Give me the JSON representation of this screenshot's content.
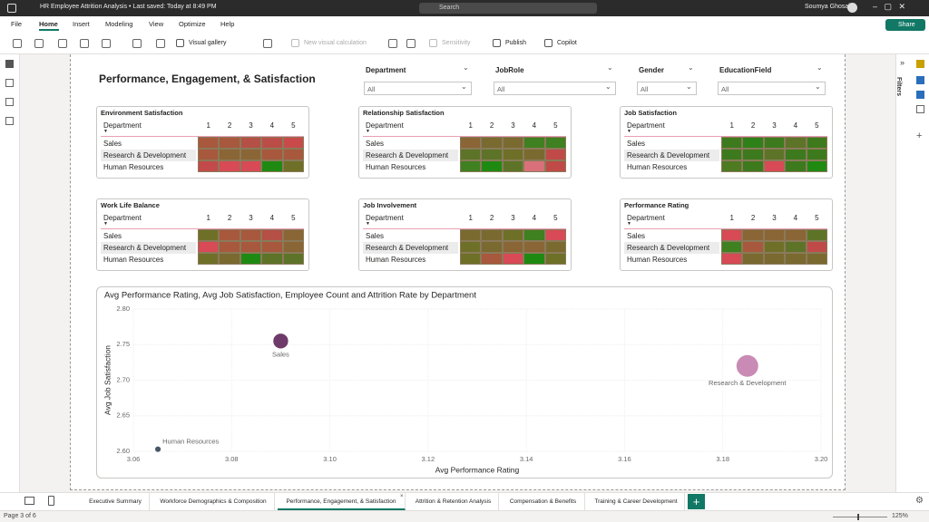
{
  "window": {
    "title": "HR Employee Attrition Analysis • Last saved: Today at 8:49 PM",
    "search": "Search",
    "user": "Soumya Ghosal",
    "share": "Share"
  },
  "menu": [
    "File",
    "Home",
    "Insert",
    "Modeling",
    "View",
    "Optimize",
    "Help"
  ],
  "ribbon": [
    "Visual gallery",
    "New visual calculation",
    "Sensitivity",
    "Publish",
    "Copilot"
  ],
  "filters_pane": "Filters",
  "report": {
    "title": "Performance, Engagement, & Satisfaction",
    "slicers": [
      {
        "label": "Department",
        "value": "All"
      },
      {
        "label": "JobRole",
        "value": "All"
      },
      {
        "label": "Gender",
        "value": "All"
      },
      {
        "label": "EducationField",
        "value": "All"
      }
    ],
    "matrices": [
      {
        "title": "Environment Satisfaction",
        "row_header": "Department",
        "columns": [
          "1",
          "2",
          "3",
          "4",
          "5"
        ],
        "rows": [
          "Sales",
          "Research & Development",
          "Human Resources"
        ],
        "colors": [
          [
            "#a8583c",
            "#a8583c",
            "#b45045",
            "#bb4d48",
            "#c94a4a"
          ],
          [
            "#a8583c",
            "#8a6535",
            "#8a6535",
            "#a8583c",
            "#a8583c"
          ],
          [
            "#c24a4a",
            "#d84a55",
            "#d84a55",
            "#1f8a12",
            "#6e7028"
          ]
        ]
      },
      {
        "title": "Relationship Satisfaction",
        "row_header": "Department",
        "columns": [
          "1",
          "2",
          "3",
          "4",
          "5"
        ],
        "rows": [
          "Sales",
          "Research & Development",
          "Human Resources"
        ],
        "colors": [
          [
            "#8a6535",
            "#7a6a30",
            "#7a6a30",
            "#3f8020",
            "#3f8020"
          ],
          [
            "#5d7428",
            "#5d7428",
            "#6e7028",
            "#7a6a30",
            "#c04a48"
          ],
          [
            "#3f8020",
            "#1f8a12",
            "#5d7428",
            "#d9707a",
            "#c04a48"
          ]
        ]
      },
      {
        "title": "Job Satisfaction",
        "row_header": "Department",
        "columns": [
          "1",
          "2",
          "3",
          "4",
          "5"
        ],
        "rows": [
          "Sales",
          "Research & Development",
          "Human Resources"
        ],
        "colors": [
          [
            "#3d7a1d",
            "#2e8018",
            "#3d7a1d",
            "#5d7428",
            "#3d7a1d"
          ],
          [
            "#3d7a1d",
            "#3d7a1d",
            "#5d7428",
            "#3d7a1d",
            "#3d7a1d"
          ],
          [
            "#4e7a22",
            "#3d7a1d",
            "#d84a55",
            "#3d7a1d",
            "#1f8a12"
          ]
        ]
      },
      {
        "title": "Work Life Balance",
        "row_header": "Department",
        "columns": [
          "1",
          "2",
          "3",
          "4",
          "5"
        ],
        "rows": [
          "Sales",
          "Research & Development",
          "Human Resources"
        ],
        "colors": [
          [
            "#6e7028",
            "#a8583c",
            "#a8583c",
            "#b45045",
            "#8a6535"
          ],
          [
            "#d84a55",
            "#a8583c",
            "#a8583c",
            "#a8583c",
            "#8a6535"
          ],
          [
            "#6e7028",
            "#7a6a30",
            "#1f8a12",
            "#5d7428",
            "#5d7428"
          ]
        ]
      },
      {
        "title": "Job Involvement",
        "row_header": "Department",
        "columns": [
          "1",
          "2",
          "3",
          "4",
          "5"
        ],
        "rows": [
          "Sales",
          "Research & Development",
          "Human Resources"
        ],
        "colors": [
          [
            "#7a6a30",
            "#7a6a30",
            "#6e7028",
            "#3f8020",
            "#d84a55"
          ],
          [
            "#6e7028",
            "#7a6a30",
            "#8a6535",
            "#8a6535",
            "#7a6a30"
          ],
          [
            "#6e7028",
            "#a8583c",
            "#d84a55",
            "#1f8a12",
            "#6e7028"
          ]
        ]
      },
      {
        "title": "Performance Rating",
        "row_header": "Department",
        "columns": [
          "1",
          "2",
          "3",
          "4",
          "5"
        ],
        "rows": [
          "Sales",
          "Research & Development",
          "Human Resources"
        ],
        "colors": [
          [
            "#d84a55",
            "#8a6535",
            "#8a6535",
            "#8a6535",
            "#5d7428"
          ],
          [
            "#3f8020",
            "#a8583c",
            "#6e7028",
            "#5d7428",
            "#c04a48"
          ],
          [
            "#d84a55",
            "#7a6a30",
            "#7a6a30",
            "#7a6a30",
            "#7a6a30"
          ]
        ]
      }
    ]
  },
  "chart_data": {
    "type": "scatter",
    "title": "Avg Performance Rating, Avg Job Satisfaction, Employee Count and Attrition Rate by Department",
    "x_label": "Avg Performance Rating",
    "y_label": "Avg Job Satisfaction",
    "categories": [
      "Sales",
      "Research & Development",
      "Human Resources"
    ],
    "x": [
      3.09,
      3.185,
      3.065
    ],
    "values": [
      2.755,
      2.72,
      2.603
    ],
    "sizes": [
      446,
      961,
      63
    ],
    "colors": [
      "#6e3a6a",
      "#c98bb5",
      "#4a5668"
    ],
    "xlim": [
      3.06,
      3.2
    ],
    "ylim": [
      2.6,
      2.8
    ],
    "xticks": [
      3.06,
      3.08,
      {
        "value": 3.1,
        "label": "3.10"
      },
      3.12,
      3.14,
      3.16,
      3.18,
      {
        "value": 3.2,
        "label": "3.20"
      }
    ],
    "yticks": [
      {
        "value": 2.6,
        "label": "2.60"
      },
      2.65,
      {
        "value": 2.7,
        "label": "2.70"
      },
      2.75,
      {
        "value": 2.8,
        "label": "2.80"
      }
    ],
    "grid": true
  },
  "tabs": [
    "Executive Summary",
    "Workforce Demographics & Composition",
    "Performance, Engagement, & Satisfaction",
    "Attrition & Retention Analysis",
    "Compensation & Benefits",
    "Training & Career Development"
  ],
  "active_tab": 2,
  "status": {
    "page": "Page 3 of 6",
    "zoom": "125%"
  }
}
